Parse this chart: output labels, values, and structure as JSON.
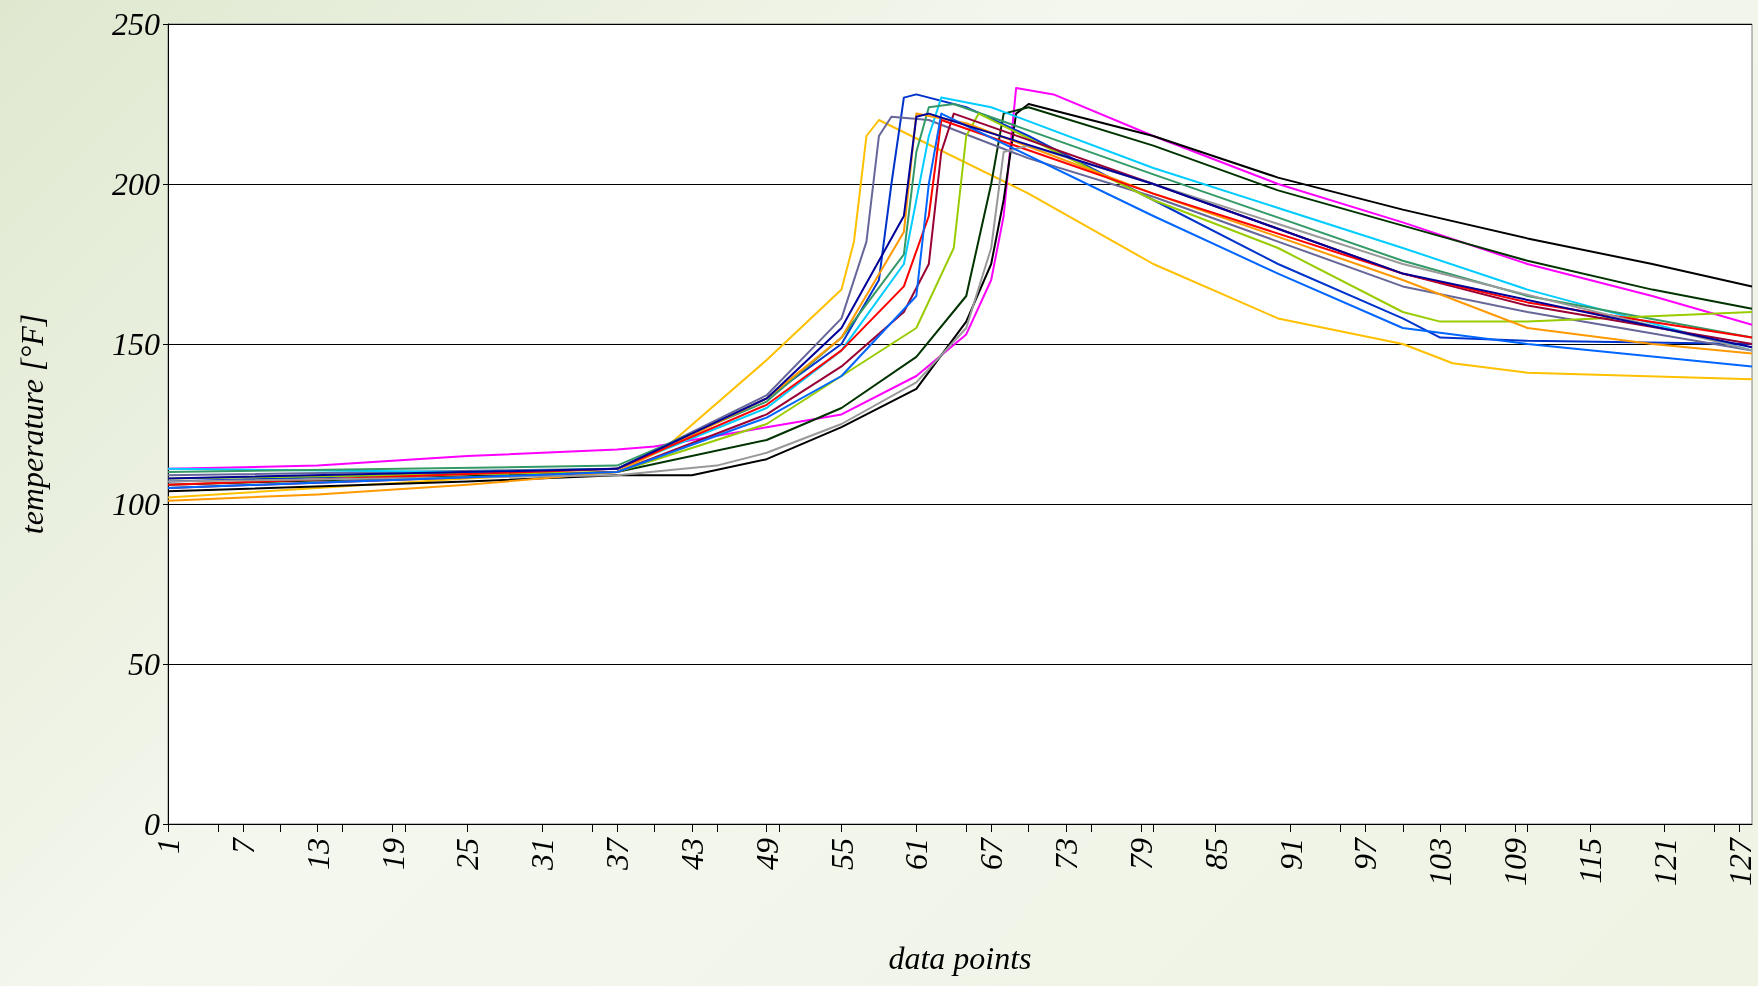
{
  "chart_data": {
    "type": "line",
    "xlabel": "data points",
    "ylabel": "temperature [°F]",
    "xlim": [
      1,
      128
    ],
    "xticks": [
      1,
      7,
      13,
      19,
      25,
      31,
      37,
      43,
      49,
      55,
      61,
      67,
      73,
      79,
      85,
      91,
      97,
      103,
      109,
      115,
      121,
      127
    ],
    "ylim": [
      0,
      250
    ],
    "yticks": [
      0,
      50,
      100,
      150,
      200,
      250
    ],
    "grid": "y",
    "marker": "none",
    "line_style": "solid",
    "series": [
      {
        "color": "#ffc000",
        "x": [
          1,
          25,
          37,
          41,
          49,
          55,
          56,
          57,
          58,
          70,
          80,
          90,
          100,
          104,
          110,
          128
        ],
        "values": [
          102,
          108,
          110,
          118,
          145,
          167,
          182,
          215,
          220,
          197,
          175,
          158,
          150,
          144,
          141,
          139
        ]
      },
      {
        "color": "#ff00ff",
        "x": [
          1,
          13,
          25,
          37,
          40,
          49,
          55,
          61,
          65,
          67,
          68,
          69,
          72,
          80,
          90,
          100,
          110,
          120,
          128
        ],
        "values": [
          111,
          112,
          115,
          117,
          118,
          124,
          128,
          140,
          153,
          170,
          190,
          230,
          228,
          215,
          200,
          188,
          175,
          165,
          156
        ]
      },
      {
        "color": "#000000",
        "x": [
          1,
          25,
          37,
          43,
          49,
          55,
          61,
          65,
          67,
          68,
          69,
          70,
          80,
          90,
          100,
          110,
          120,
          128
        ],
        "values": [
          104,
          107,
          109,
          109,
          114,
          124,
          136,
          157,
          175,
          195,
          222,
          225,
          215,
          202,
          192,
          183,
          175,
          168
        ]
      },
      {
        "color": "#003300",
        "x": [
          1,
          37,
          49,
          55,
          61,
          65,
          67,
          68,
          70,
          80,
          90,
          100,
          110,
          120,
          128
        ],
        "values": [
          106,
          110,
          120,
          130,
          146,
          165,
          200,
          222,
          224,
          212,
          198,
          187,
          176,
          167,
          161
        ]
      },
      {
        "color": "#0033cc",
        "x": [
          1,
          37,
          49,
          55,
          58,
          59,
          60,
          61,
          65,
          70,
          80,
          90,
          100,
          103,
          110,
          128
        ],
        "values": [
          107,
          111,
          133,
          150,
          170,
          200,
          227,
          228,
          224,
          215,
          195,
          175,
          158,
          152,
          151,
          150
        ]
      },
      {
        "color": "#666699",
        "x": [
          1,
          37,
          49,
          55,
          57,
          58,
          59,
          62,
          70,
          80,
          90,
          100,
          110,
          128
        ],
        "values": [
          109,
          111,
          134,
          158,
          182,
          215,
          221,
          220,
          208,
          196,
          182,
          168,
          160,
          148
        ]
      },
      {
        "color": "#00ccff",
        "x": [
          1,
          25,
          37,
          49,
          55,
          60,
          62,
          63,
          67,
          80,
          100,
          110,
          128
        ],
        "values": [
          111,
          110,
          111,
          130,
          148,
          175,
          215,
          227,
          224,
          205,
          180,
          167,
          148
        ]
      },
      {
        "color": "#339966",
        "x": [
          1,
          37,
          49,
          55,
          60,
          61,
          62,
          64,
          80,
          100,
          110,
          128
        ],
        "values": [
          110,
          112,
          132,
          152,
          178,
          210,
          224,
          225,
          203,
          176,
          165,
          152
        ]
      },
      {
        "color": "#99cc00",
        "x": [
          1,
          37,
          49,
          55,
          61,
          64,
          65,
          66,
          80,
          90,
          100,
          103,
          110,
          128
        ],
        "values": [
          108,
          110,
          125,
          140,
          155,
          180,
          215,
          222,
          195,
          180,
          160,
          157,
          157,
          160
        ]
      },
      {
        "color": "#990033",
        "x": [
          1,
          37,
          49,
          55,
          60,
          62,
          63,
          64,
          80,
          100,
          110,
          128
        ],
        "values": [
          105,
          110,
          128,
          143,
          160,
          175,
          210,
          222,
          200,
          172,
          162,
          150
        ]
      },
      {
        "color": "#ff9900",
        "x": [
          1,
          13,
          25,
          37,
          49,
          55,
          60,
          61,
          65,
          80,
          100,
          110,
          120,
          128
        ],
        "values": [
          101,
          103,
          106,
          110,
          133,
          152,
          185,
          222,
          219,
          197,
          170,
          155,
          150,
          147
        ]
      },
      {
        "color": "#ff0000",
        "x": [
          1,
          37,
          49,
          55,
          60,
          62,
          63,
          80,
          100,
          110,
          128
        ],
        "values": [
          106,
          111,
          131,
          148,
          168,
          190,
          220,
          197,
          172,
          163,
          152
        ]
      },
      {
        "color": "#999999",
        "x": [
          1,
          37,
          45,
          49,
          55,
          61,
          65,
          67,
          68,
          70,
          80,
          100,
          128
        ],
        "values": [
          107,
          109,
          112,
          116,
          125,
          138,
          155,
          180,
          210,
          212,
          200,
          175,
          148
        ]
      },
      {
        "color": "#0066ff",
        "x": [
          1,
          37,
          49,
          55,
          61,
          62,
          63,
          80,
          90,
          100,
          110,
          128
        ],
        "values": [
          105,
          110,
          127,
          140,
          165,
          200,
          222,
          190,
          172,
          155,
          150,
          143
        ]
      },
      {
        "color": "#000099",
        "x": [
          1,
          37,
          49,
          55,
          60,
          61,
          62,
          80,
          100,
          128
        ],
        "values": [
          108,
          111,
          133,
          155,
          190,
          221,
          222,
          200,
          172,
          149
        ]
      }
    ]
  }
}
